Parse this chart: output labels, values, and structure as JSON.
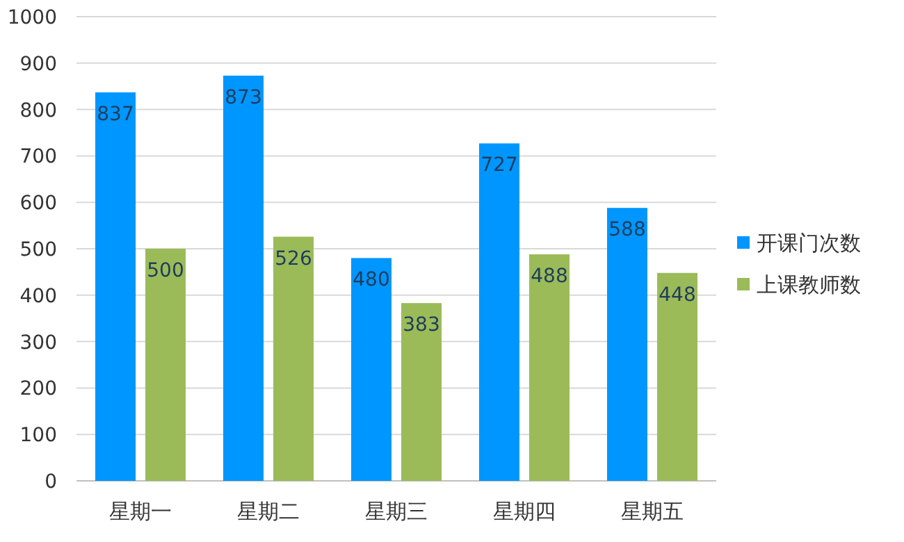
{
  "chart_data": {
    "type": "bar",
    "categories": [
      "星期一",
      "星期二",
      "星期三",
      "星期四",
      "星期五"
    ],
    "series": [
      {
        "name": "开课门次数",
        "color": "#0096ff",
        "values": [
          837,
          873,
          480,
          727,
          588
        ]
      },
      {
        "name": "上课教师数",
        "color": "#9bbb59",
        "values": [
          500,
          526,
          383,
          488,
          448
        ]
      }
    ],
    "ylim": [
      0,
      1000
    ],
    "yticks": [
      0,
      100,
      200,
      300,
      400,
      500,
      600,
      700,
      800,
      900,
      1000
    ],
    "grid": "y",
    "legend": "right",
    "data_labels": true
  }
}
